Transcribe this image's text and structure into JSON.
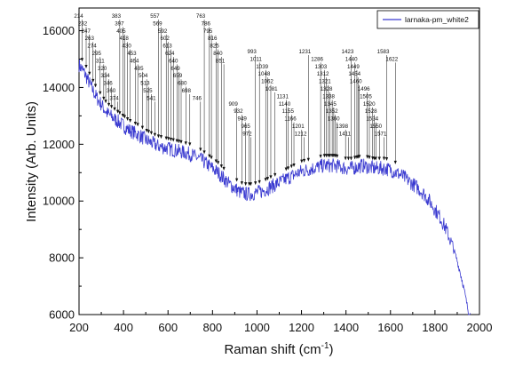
{
  "chart_data": {
    "type": "line",
    "title": "",
    "xlabel": "Raman shift (cm",
    "xlabel_sup": "-1",
    "xlabel_end": ")",
    "ylabel": "Intensity (Arb. Units)",
    "xlim": [
      200,
      2000
    ],
    "ylim": [
      6000,
      16800
    ],
    "x_ticks": [
      200,
      400,
      600,
      800,
      1000,
      1200,
      1400,
      1600,
      1800,
      2000
    ],
    "y_ticks": [
      6000,
      8000,
      10000,
      12000,
      14000,
      16000
    ],
    "grid": false,
    "legend_position": "top-right",
    "series": [
      {
        "name": "larnaka-pm_white2",
        "color": "#3a3ad0",
        "x": [
          200,
          225,
          250,
          275,
          300,
          325,
          350,
          375,
          400,
          425,
          450,
          475,
          500,
          525,
          550,
          575,
          600,
          625,
          650,
          675,
          700,
          725,
          750,
          775,
          800,
          825,
          850,
          875,
          900,
          925,
          950,
          975,
          1000,
          1025,
          1050,
          1075,
          1100,
          1125,
          1150,
          1175,
          1200,
          1225,
          1250,
          1275,
          1300,
          1325,
          1350,
          1375,
          1400,
          1425,
          1450,
          1475,
          1500,
          1525,
          1550,
          1575,
          1600,
          1625,
          1650,
          1675,
          1700,
          1725,
          1750,
          1775,
          1800,
          1825,
          1850,
          1875,
          1900,
          1925,
          1940,
          1950,
          1960
        ],
        "y": [
          14800,
          14500,
          14100,
          13700,
          13400,
          13100,
          12950,
          12800,
          12650,
          12500,
          12400,
          12300,
          12150,
          12050,
          11950,
          11900,
          11850,
          11800,
          11750,
          11700,
          11650,
          11550,
          11450,
          11300,
          11150,
          11000,
          10800,
          10600,
          10450,
          10300,
          10250,
          10250,
          10300,
          10350,
          10450,
          10550,
          10650,
          10750,
          10850,
          10950,
          11050,
          11100,
          11150,
          11200,
          11250,
          11250,
          11250,
          11200,
          11150,
          11150,
          11200,
          11250,
          11200,
          11150,
          11150,
          11150,
          11100,
          11000,
          10900,
          10750,
          10600,
          10450,
          10250,
          10000,
          9700,
          9400,
          9000,
          8500,
          7900,
          7100,
          6500,
          6100,
          6000
        ]
      }
    ],
    "peak_labels": [
      {
        "x": 214,
        "text": "214"
      },
      {
        "x": 232,
        "text": "232"
      },
      {
        "x": 247,
        "text": "247"
      },
      {
        "x": 263,
        "text": "263"
      },
      {
        "x": 274,
        "text": "274"
      },
      {
        "x": 295,
        "text": "295"
      },
      {
        "x": 311,
        "text": "311"
      },
      {
        "x": 320,
        "text": "320"
      },
      {
        "x": 334,
        "text": "334"
      },
      {
        "x": 346,
        "text": "346"
      },
      {
        "x": 360,
        "text": "360"
      },
      {
        "x": 374,
        "text": "374"
      },
      {
        "x": 383,
        "text": "383"
      },
      {
        "x": 397,
        "text": "397"
      },
      {
        "x": 405,
        "text": "405"
      },
      {
        "x": 418,
        "text": "418"
      },
      {
        "x": 430,
        "text": "430"
      },
      {
        "x": 453,
        "text": "453"
      },
      {
        "x": 464,
        "text": "464"
      },
      {
        "x": 485,
        "text": "485"
      },
      {
        "x": 504,
        "text": "504"
      },
      {
        "x": 513,
        "text": "513"
      },
      {
        "x": 525,
        "text": "525"
      },
      {
        "x": 541,
        "text": "541"
      },
      {
        "x": 557,
        "text": "557"
      },
      {
        "x": 569,
        "text": "569"
      },
      {
        "x": 592,
        "text": "592"
      },
      {
        "x": 602,
        "text": "602"
      },
      {
        "x": 613,
        "text": "613"
      },
      {
        "x": 624,
        "text": "624"
      },
      {
        "x": 640,
        "text": "640"
      },
      {
        "x": 649,
        "text": "649"
      },
      {
        "x": 659,
        "text": "659"
      },
      {
        "x": 680,
        "text": "680"
      },
      {
        "x": 698,
        "text": "698"
      },
      {
        "x": 746,
        "text": "746"
      },
      {
        "x": 763,
        "text": "763"
      },
      {
        "x": 786,
        "text": "786"
      },
      {
        "x": 795,
        "text": "795"
      },
      {
        "x": 816,
        "text": "816"
      },
      {
        "x": 825,
        "text": "825"
      },
      {
        "x": 840,
        "text": "840"
      },
      {
        "x": 851,
        "text": "851"
      },
      {
        "x": 909,
        "text": "909"
      },
      {
        "x": 932,
        "text": "932"
      },
      {
        "x": 949,
        "text": "949"
      },
      {
        "x": 965,
        "text": "965"
      },
      {
        "x": 972,
        "text": "972"
      },
      {
        "x": 993,
        "text": "993"
      },
      {
        "x": 1011,
        "text": "1011"
      },
      {
        "x": 1039,
        "text": "1039"
      },
      {
        "x": 1048,
        "text": "1048"
      },
      {
        "x": 1062,
        "text": "1062"
      },
      {
        "x": 1081,
        "text": "1081"
      },
      {
        "x": 1131,
        "text": "1131"
      },
      {
        "x": 1140,
        "text": "1140"
      },
      {
        "x": 1155,
        "text": "1155"
      },
      {
        "x": 1166,
        "text": "1166"
      },
      {
        "x": 1201,
        "text": "1201"
      },
      {
        "x": 1212,
        "text": "1212"
      },
      {
        "x": 1231,
        "text": "1231"
      },
      {
        "x": 1286,
        "text": "1286"
      },
      {
        "x": 1303,
        "text": "1303"
      },
      {
        "x": 1312,
        "text": "1312"
      },
      {
        "x": 1321,
        "text": "1321"
      },
      {
        "x": 1328,
        "text": "1328"
      },
      {
        "x": 1338,
        "text": "1338"
      },
      {
        "x": 1345,
        "text": "1345"
      },
      {
        "x": 1352,
        "text": "1352"
      },
      {
        "x": 1360,
        "text": "1360"
      },
      {
        "x": 1398,
        "text": "1398"
      },
      {
        "x": 1411,
        "text": "1411"
      },
      {
        "x": 1423,
        "text": "1423"
      },
      {
        "x": 1440,
        "text": "1440"
      },
      {
        "x": 1449,
        "text": "1449"
      },
      {
        "x": 1454,
        "text": "1454"
      },
      {
        "x": 1460,
        "text": "1460"
      },
      {
        "x": 1496,
        "text": "1496"
      },
      {
        "x": 1505,
        "text": "1505"
      },
      {
        "x": 1520,
        "text": "1520"
      },
      {
        "x": 1528,
        "text": "1528"
      },
      {
        "x": 1534,
        "text": "1534"
      },
      {
        "x": 1550,
        "text": "1550"
      },
      {
        "x": 1571,
        "text": "1571"
      },
      {
        "x": 1583,
        "text": "1583"
      },
      {
        "x": 1622,
        "text": "1622"
      }
    ]
  }
}
